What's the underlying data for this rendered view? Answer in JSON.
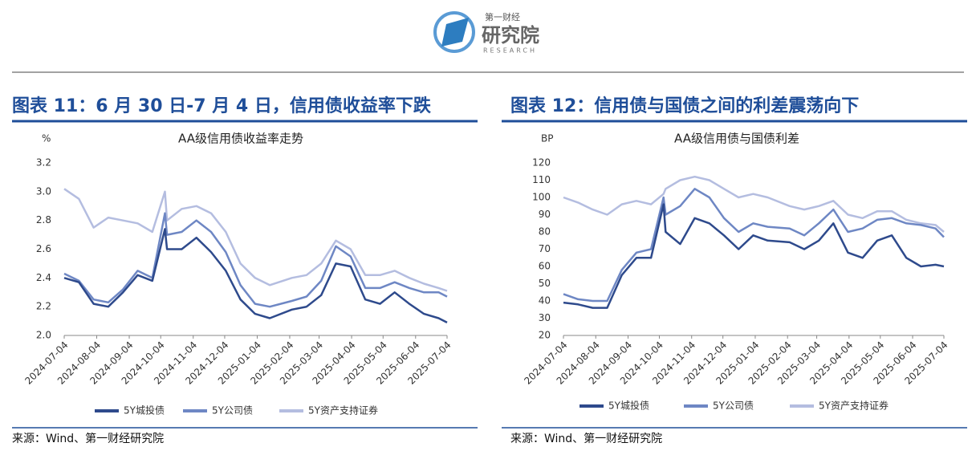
{
  "header": {
    "logo_top": "第一财经",
    "logo_main": "研究院",
    "logo_sub": "RESEARCH"
  },
  "panels": [
    {
      "caption": "图表 11：6 月 30 日-7 月 4 日，信用债收益率下跌",
      "source": "来源：Wind、第一财经研究院"
    },
    {
      "caption": "图表 12：信用债与国债之间的利差震荡向下",
      "source": "来源：Wind、第一财经研究院"
    }
  ],
  "chart_data": [
    {
      "type": "line",
      "title": "AA级信用债收益率走势",
      "y_unit": "%",
      "x": [
        "2024-07-04",
        "2024-07-18",
        "2024-08-01",
        "2024-08-15",
        "2024-08-29",
        "2024-09-12",
        "2024-09-26",
        "2024-10-08",
        "2024-10-10",
        "2024-10-24",
        "2024-11-07",
        "2024-11-21",
        "2024-12-05",
        "2024-12-19",
        "2025-01-02",
        "2025-01-16",
        "2025-02-06",
        "2025-02-20",
        "2025-03-06",
        "2025-03-20",
        "2025-04-03",
        "2025-04-17",
        "2025-05-01",
        "2025-05-15",
        "2025-05-29",
        "2025-06-12",
        "2025-06-26",
        "2025-07-04"
      ],
      "series": [
        {
          "name": "5Y城投债",
          "color": "#2e4a8c",
          "values": [
            2.4,
            2.37,
            2.22,
            2.2,
            2.3,
            2.42,
            2.38,
            2.74,
            2.6,
            2.6,
            2.68,
            2.58,
            2.45,
            2.25,
            2.15,
            2.12,
            2.18,
            2.2,
            2.28,
            2.5,
            2.48,
            2.25,
            2.22,
            2.3,
            2.22,
            2.15,
            2.12,
            2.09
          ]
        },
        {
          "name": "5Y公司债",
          "color": "#6e87c4",
          "values": [
            2.43,
            2.38,
            2.25,
            2.23,
            2.32,
            2.45,
            2.4,
            2.85,
            2.7,
            2.72,
            2.8,
            2.72,
            2.58,
            2.35,
            2.22,
            2.2,
            2.24,
            2.27,
            2.38,
            2.62,
            2.55,
            2.33,
            2.33,
            2.37,
            2.33,
            2.3,
            2.3,
            2.27
          ]
        },
        {
          "name": "5Y资产支持证券",
          "color": "#b4bde0",
          "values": [
            3.02,
            2.95,
            2.75,
            2.82,
            2.8,
            2.78,
            2.72,
            3.0,
            2.8,
            2.88,
            2.9,
            2.85,
            2.72,
            2.5,
            2.4,
            2.35,
            2.4,
            2.42,
            2.5,
            2.66,
            2.6,
            2.42,
            2.42,
            2.45,
            2.4,
            2.36,
            2.33,
            2.31
          ]
        }
      ],
      "xlim": [
        "2024-07-04",
        "2025-07-04"
      ],
      "xticks": [
        "2024-07-04",
        "2024-08-04",
        "2024-09-04",
        "2024-10-04",
        "2024-11-04",
        "2024-12-04",
        "2025-01-04",
        "2025-02-04",
        "2025-03-04",
        "2025-04-04",
        "2025-05-04",
        "2025-06-04",
        "2025-07-04"
      ],
      "ylim": [
        2.0,
        3.2
      ],
      "yticks": [
        {
          "value": 2.0,
          "label": "2.0"
        },
        2.2,
        2.4,
        2.6,
        2.8,
        {
          "value": 3.0,
          "label": "3.0"
        },
        3.2
      ],
      "legend": "bottom"
    },
    {
      "type": "line",
      "title": "AA级信用债与国债利差",
      "y_unit": "BP",
      "x": [
        "2024-07-04",
        "2024-07-18",
        "2024-08-01",
        "2024-08-15",
        "2024-08-29",
        "2024-09-12",
        "2024-09-26",
        "2024-10-08",
        "2024-10-10",
        "2024-10-24",
        "2024-11-07",
        "2024-11-21",
        "2024-12-05",
        "2024-12-19",
        "2025-01-02",
        "2025-01-16",
        "2025-02-06",
        "2025-02-20",
        "2025-03-06",
        "2025-03-20",
        "2025-04-03",
        "2025-04-17",
        "2025-05-01",
        "2025-05-15",
        "2025-05-29",
        "2025-06-12",
        "2025-06-26",
        "2025-07-04"
      ],
      "series": [
        {
          "name": "5Y城投债",
          "color": "#2e4a8c",
          "values": [
            39,
            38,
            36,
            36,
            55,
            65,
            65,
            96,
            80,
            73,
            88,
            85,
            78,
            70,
            78,
            75,
            74,
            70,
            75,
            85,
            68,
            65,
            75,
            78,
            65,
            60,
            61,
            60
          ]
        },
        {
          "name": "5Y公司债",
          "color": "#6e87c4",
          "values": [
            44,
            41,
            40,
            40,
            58,
            68,
            70,
            100,
            90,
            95,
            105,
            100,
            88,
            80,
            85,
            83,
            82,
            78,
            85,
            93,
            80,
            82,
            87,
            88,
            85,
            84,
            82,
            77
          ]
        },
        {
          "name": "5Y资产支持证券",
          "color": "#b4bde0",
          "values": [
            100,
            97,
            93,
            90,
            96,
            98,
            96,
            102,
            105,
            110,
            112,
            110,
            105,
            100,
            102,
            100,
            95,
            93,
            95,
            98,
            90,
            88,
            92,
            92,
            87,
            85,
            84,
            80
          ]
        }
      ],
      "xlim": [
        "2024-07-04",
        "2025-07-04"
      ],
      "xticks": [
        "2024-07-04",
        "2024-08-04",
        "2024-09-04",
        "2024-10-04",
        "2024-11-04",
        "2024-12-04",
        "2025-01-04",
        "2025-02-04",
        "2025-03-04",
        "2025-04-04",
        "2025-05-04",
        "2025-06-04",
        "2025-07-04"
      ],
      "ylim": [
        20,
        120
      ],
      "yticks": [
        20,
        30,
        40,
        50,
        60,
        70,
        80,
        90,
        100,
        110,
        120
      ],
      "legend": "bottom"
    }
  ]
}
